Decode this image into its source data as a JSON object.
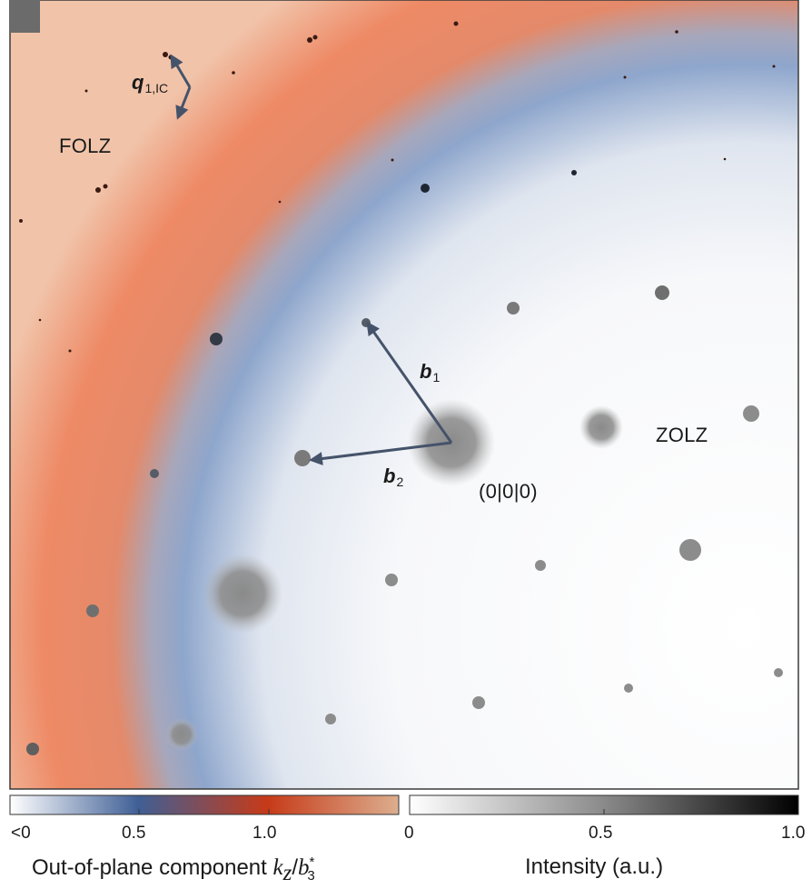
{
  "figure": {
    "panel_letter": "",
    "labels": {
      "folz": "FOLZ",
      "zolz": "ZOLZ",
      "origin": "(0|0|0)",
      "b1": {
        "main": "b",
        "sub": "1"
      },
      "b2": {
        "main": "b",
        "sub": "2"
      },
      "q": {
        "main": "q",
        "sub": "1,IC"
      }
    },
    "colorbar_kz": {
      "title_prefix": "Out-of-plane component ",
      "title_var": "k",
      "title_var_sub": "z",
      "title_sep": "/",
      "title_den": "b",
      "title_den_sub": "3",
      "title_den_sup": "*",
      "ticks": [
        "<0",
        "0.5",
        "1.0"
      ],
      "stops": [
        "#ffffff",
        "#3f5f95",
        "#c63a18",
        "#dcae8e"
      ]
    },
    "colorbar_intensity": {
      "title": "Intensity (a.u.)",
      "ticks": [
        "0",
        "0.5",
        "1.0"
      ],
      "stops": [
        "#ffffff",
        "#8a8a8a",
        "#000000"
      ]
    },
    "colors": {
      "folz_ring": "#e8785a",
      "blue_ring": "#7f9ac7",
      "arrow": "#45536a",
      "spot": "#8a8a8a"
    }
  }
}
